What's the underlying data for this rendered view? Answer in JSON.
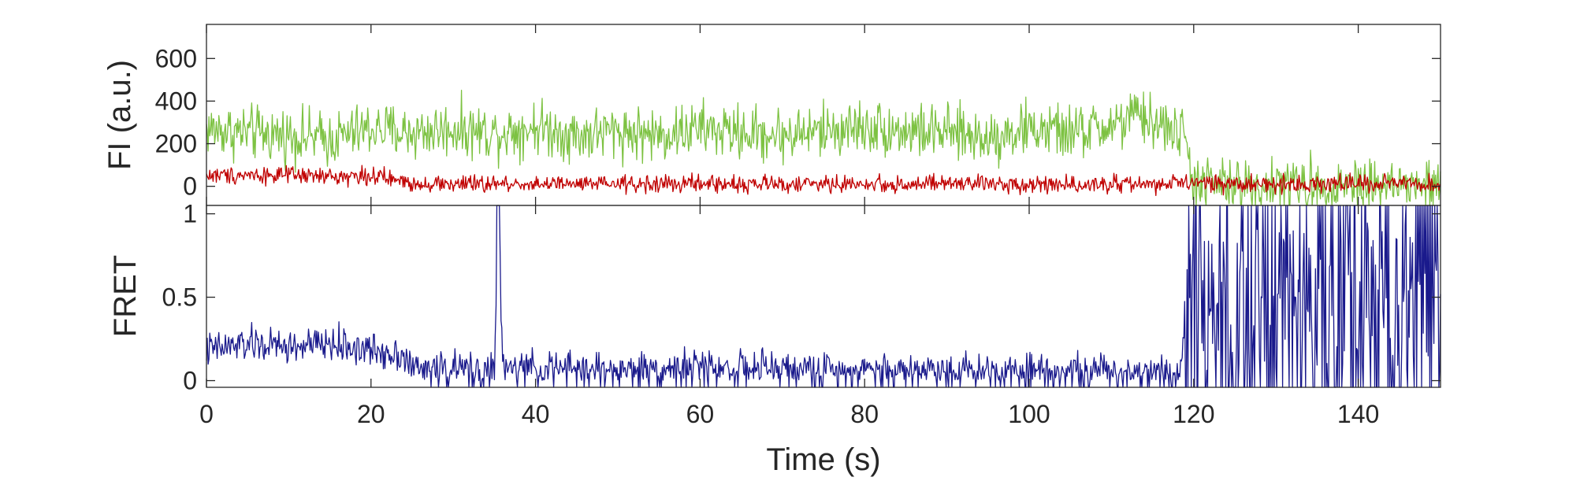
{
  "chart_data": [
    {
      "type": "line",
      "panel": "top",
      "ylabel": "FI (a.u.)",
      "xlabel": "",
      "xlim": [
        0,
        150
      ],
      "ylim": [
        -90,
        760
      ],
      "yticks": [
        0,
        200,
        400,
        600
      ],
      "ytick_labels": [
        "0",
        "200",
        "400",
        "600"
      ],
      "xticks": [
        0,
        20,
        40,
        60,
        80,
        100,
        120,
        140
      ],
      "grid": false,
      "legend": "none",
      "series": [
        {
          "color": "#7dc242",
          "x": [
            0,
            5,
            10,
            15,
            20,
            25,
            30,
            35,
            40,
            45,
            50,
            55,
            60,
            65,
            70,
            75,
            80,
            85,
            90,
            95,
            100,
            105,
            110,
            113,
            115,
            118,
            119,
            120,
            125,
            130,
            135,
            140,
            145,
            150
          ],
          "y": [
            270,
            250,
            240,
            220,
            270,
            250,
            270,
            250,
            280,
            240,
            260,
            240,
            270,
            250,
            240,
            260,
            280,
            260,
            250,
            230,
            270,
            250,
            280,
            330,
            300,
            260,
            220,
            20,
            0,
            10,
            0,
            20,
            0,
            0
          ],
          "noise": 110
        },
        {
          "color": "#c00000",
          "x": [
            0,
            5,
            10,
            15,
            20,
            25,
            30,
            35,
            40,
            45,
            50,
            55,
            60,
            65,
            70,
            75,
            80,
            85,
            90,
            95,
            100,
            105,
            110,
            115,
            119,
            120,
            125,
            130,
            135,
            140,
            145,
            150
          ],
          "y": [
            50,
            55,
            50,
            45,
            50,
            15,
            10,
            10,
            12,
            8,
            10,
            10,
            12,
            10,
            10,
            10,
            10,
            8,
            12,
            12,
            10,
            10,
            10,
            10,
            10,
            20,
            10,
            10,
            12,
            15,
            10,
            5
          ],
          "noise": 35
        }
      ]
    },
    {
      "type": "line",
      "panel": "bottom",
      "ylabel": "FRET",
      "xlabel": "Time (s)",
      "xlim": [
        0,
        150
      ],
      "ylim": [
        -0.04,
        1.05
      ],
      "yticks": [
        0,
        0.5,
        1
      ],
      "ytick_labels": [
        "0",
        "0.5",
        "1"
      ],
      "xticks": [
        0,
        20,
        40,
        60,
        80,
        100,
        120,
        140
      ],
      "xtick_labels": [
        "0",
        "20",
        "40",
        "60",
        "80",
        "100",
        "120",
        "140"
      ],
      "grid": false,
      "legend": "none",
      "series": [
        {
          "color": "#1a1a8c",
          "x": [
            0,
            5,
            10,
            15,
            20,
            24,
            25,
            30,
            34,
            35,
            35.5,
            36,
            40,
            45,
            50,
            55,
            60,
            65,
            70,
            75,
            80,
            85,
            90,
            95,
            100,
            105,
            110,
            115,
            118.5,
            119,
            120,
            125,
            130,
            135,
            140,
            145,
            150
          ],
          "y": [
            0.18,
            0.22,
            0.2,
            0.22,
            0.18,
            0.16,
            0.07,
            0.07,
            0.06,
            0.07,
            1.05,
            0.07,
            0.07,
            0.07,
            0.06,
            0.07,
            0.08,
            0.07,
            0.07,
            0.06,
            0.07,
            0.06,
            0.07,
            0.06,
            0.07,
            0.06,
            0.05,
            0.06,
            0.06,
            0.55,
            0.5,
            0.55,
            0.5,
            0.55,
            0.5,
            0.5,
            0.5
          ],
          "noise": 0.09
        }
      ]
    }
  ]
}
